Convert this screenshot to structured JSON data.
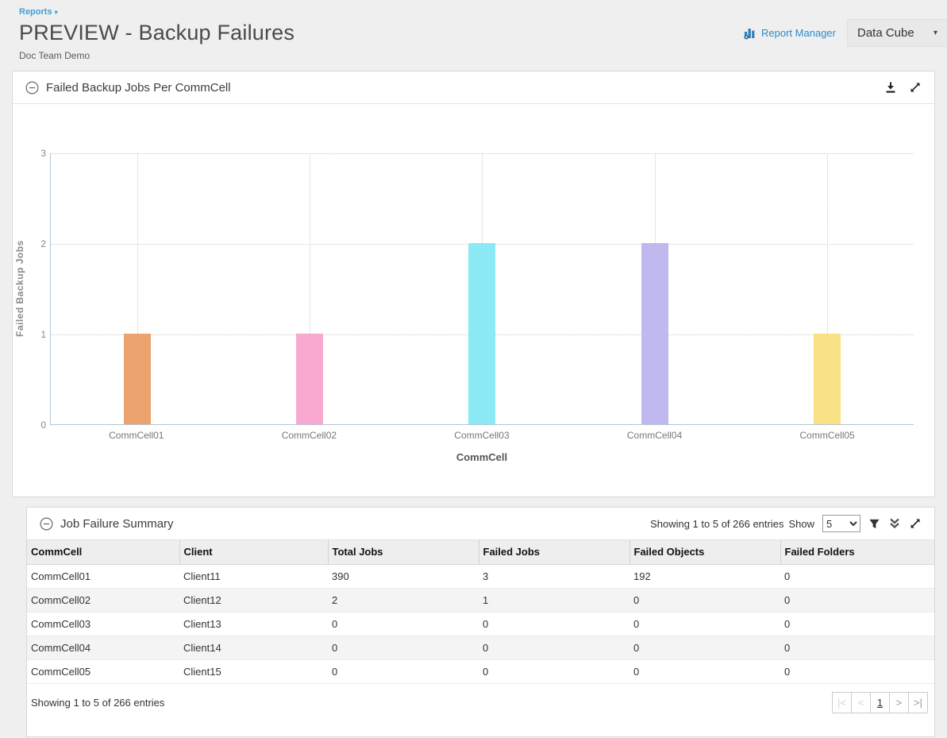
{
  "header": {
    "breadcrumb": "Reports",
    "breadcrumb_caret": "▾",
    "title": "PREVIEW - Backup Failures",
    "subtitle": "Doc Team Demo",
    "report_manager_label": "Report Manager",
    "data_cube_label": "Data Cube",
    "data_cube_caret": "▾"
  },
  "chart_panel": {
    "title": "Failed Backup Jobs Per CommCell"
  },
  "chart_data": {
    "type": "bar",
    "title": "Failed Backup Jobs Per CommCell",
    "categories": [
      "CommCell01",
      "CommCell02",
      "CommCell03",
      "CommCell04",
      "CommCell05"
    ],
    "values": [
      1,
      1,
      2,
      2,
      1
    ],
    "bar_colors": [
      "#eda36d",
      "#f9a8d0",
      "#8ce9f6",
      "#c0b9f0",
      "#f8e084"
    ],
    "xlabel": "CommCell",
    "ylabel": "Failed Backup Jobs",
    "ylim": [
      0,
      3
    ],
    "yticks": [
      0,
      1,
      2,
      3
    ],
    "grid": "dotted horizontal gridlines at 1,2,3 and vertical dotted lines at category centers",
    "legend": "none"
  },
  "table_panel": {
    "title": "Job Failure Summary",
    "showing_text": "Showing 1 to 5 of 266 entries",
    "show_label": "Show",
    "page_size": "5",
    "columns": [
      "CommCell",
      "Client",
      "Total Jobs",
      "Failed Jobs",
      "Failed Objects",
      "Failed Folders"
    ],
    "rows": [
      [
        "CommCell01",
        "Client11",
        "390",
        "3",
        "192",
        "0"
      ],
      [
        "CommCell02",
        "Client12",
        "2",
        "1",
        "0",
        "0"
      ],
      [
        "CommCell03",
        "Client13",
        "0",
        "0",
        "0",
        "0"
      ],
      [
        "CommCell04",
        "Client14",
        "0",
        "0",
        "0",
        "0"
      ],
      [
        "CommCell05",
        "Client15",
        "0",
        "0",
        "0",
        "0"
      ]
    ],
    "footer_text": "Showing 1 to 5 of 266 entries",
    "pagination": {
      "first_label": "|<",
      "prev_label": "<",
      "current_page": "1",
      "next_label": ">",
      "last_label": ">|"
    }
  }
}
